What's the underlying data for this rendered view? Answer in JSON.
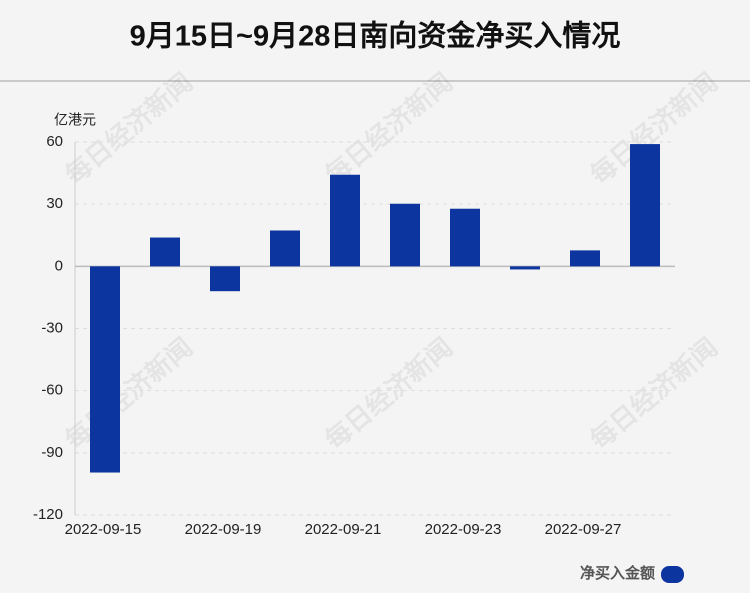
{
  "chart_data": {
    "type": "bar",
    "title": "9月15日~9月28日南向资金净买入情况",
    "y_label": "亿港元",
    "watermark": "每日经济新闻",
    "categories": [
      "2022-09-15",
      null,
      "2022-09-19",
      null,
      "2022-09-21",
      null,
      "2022-09-23",
      null,
      "2022-09-27",
      null
    ],
    "series": [
      {
        "name": "净买入金额",
        "color": "#0d35a0",
        "values": [
          -99.5,
          13.9,
          -12.0,
          17.3,
          44.2,
          30.2,
          27.8,
          -1.5,
          7.7,
          59.0
        ]
      }
    ],
    "ylim": [
      -120,
      60
    ],
    "yticks": [
      -120,
      -90,
      -60,
      -30,
      0,
      30,
      60
    ],
    "grid": true,
    "legend": "bottom-right"
  }
}
